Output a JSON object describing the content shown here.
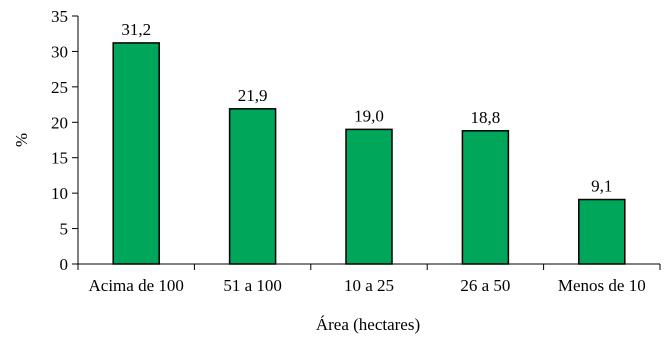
{
  "chart_data": {
    "type": "bar",
    "title": "",
    "xlabel": "Área (hectares)",
    "ylabel": "%",
    "categories": [
      "Acima de 100",
      "51 a 100",
      "10 a 25",
      "26 a 50",
      "Menos de 10"
    ],
    "values": [
      31.2,
      21.9,
      19.0,
      18.8,
      9.1
    ],
    "value_labels": [
      "31,2",
      "21,9",
      "19,0",
      "18,8",
      "9,1"
    ],
    "y_ticks": [
      0,
      5,
      10,
      15,
      20,
      25,
      30,
      35
    ],
    "ylim": [
      0,
      35
    ],
    "grid": false,
    "legend": "none",
    "colors": {
      "bar_fill": "#00a65a",
      "bar_stroke": "#000000",
      "axis": "#000000"
    }
  }
}
